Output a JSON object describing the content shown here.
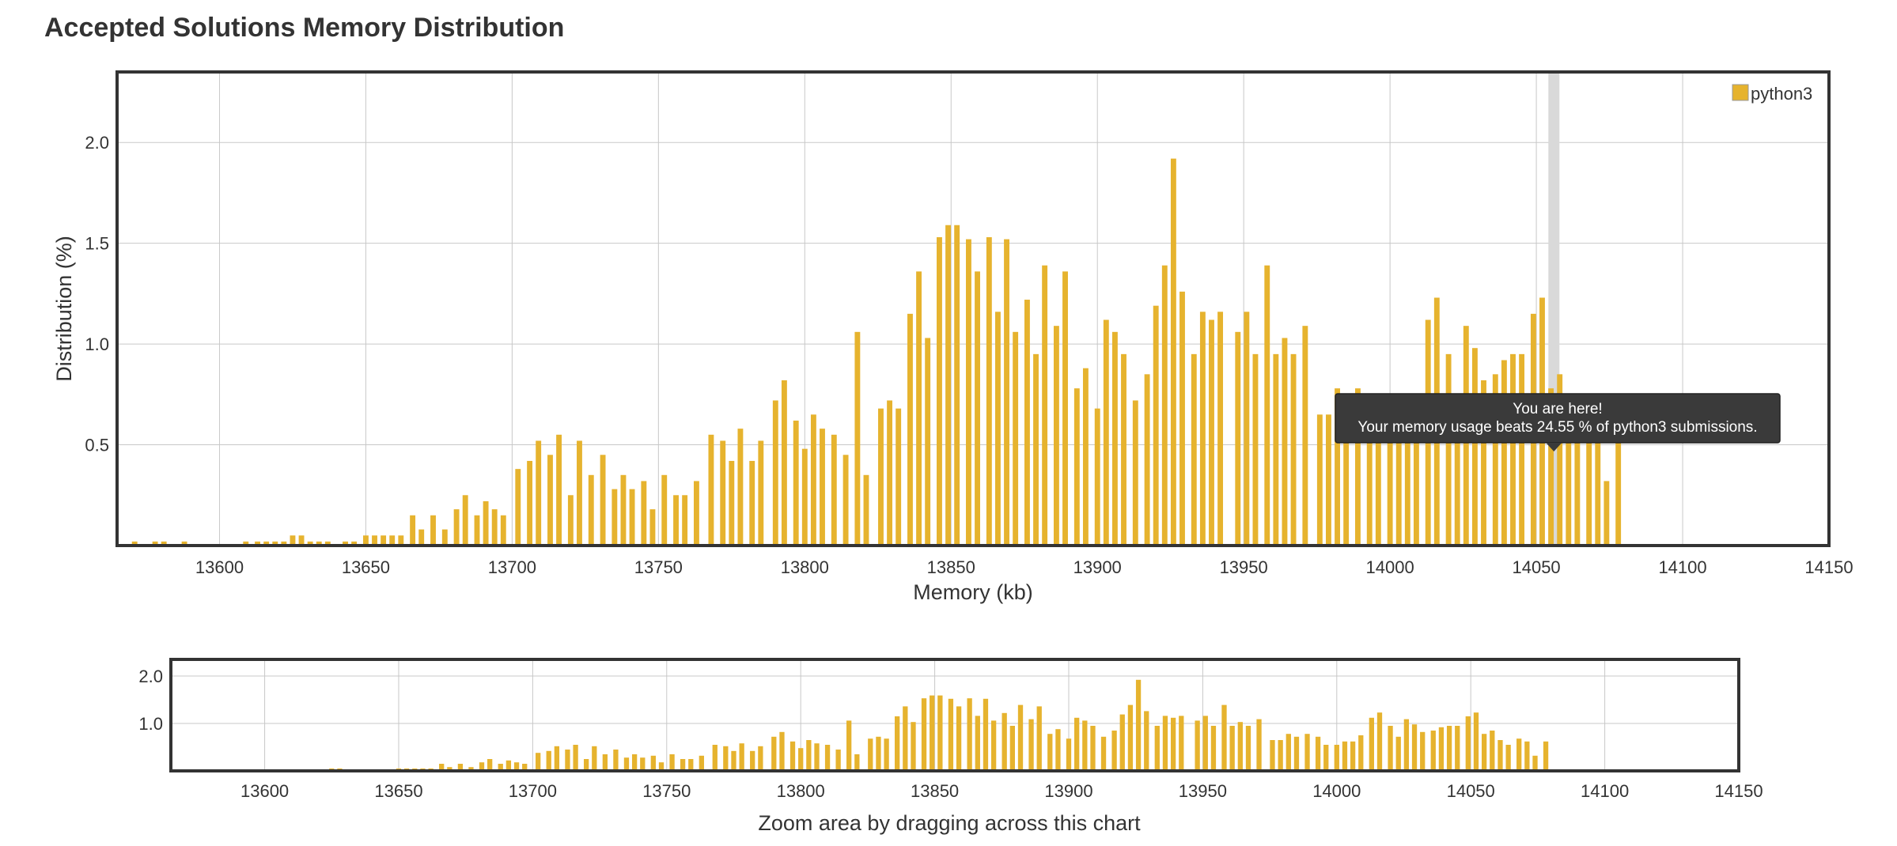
{
  "page": {
    "title": "Accepted Solutions Memory Distribution"
  },
  "colors": {
    "bar": "#e6b32e",
    "frame": "#333333",
    "grid": "#c8c8c8",
    "highlight": "#d9d9d9",
    "tooltip_bg": "#3a3a3a"
  },
  "chart_data": {
    "type": "bar",
    "series": [
      {
        "name": "python3"
      }
    ],
    "xlabel": "Memory (kb)",
    "ylabel": "Distribution (%)",
    "xlim": [
      13565,
      14150
    ],
    "ylim": [
      0,
      2.35
    ],
    "x_ticks": [
      13600,
      13650,
      13700,
      13750,
      13800,
      13850,
      13900,
      13950,
      14000,
      14050,
      14100,
      14150
    ],
    "y_ticks": [
      0.5,
      1.0,
      1.5,
      2.0
    ],
    "grid": true,
    "legend_position": "top-right",
    "bar_width_kb": 2,
    "bins": [
      [
        13571,
        0.02
      ],
      [
        13578,
        0.02
      ],
      [
        13581,
        0.02
      ],
      [
        13588,
        0.02
      ],
      [
        13609,
        0.02
      ],
      [
        13613,
        0.02
      ],
      [
        13616,
        0.02
      ],
      [
        13619,
        0.02
      ],
      [
        13622,
        0.02
      ],
      [
        13625,
        0.05
      ],
      [
        13628,
        0.05
      ],
      [
        13631,
        0.02
      ],
      [
        13634,
        0.02
      ],
      [
        13637,
        0.02
      ],
      [
        13643,
        0.02
      ],
      [
        13646,
        0.02
      ],
      [
        13650,
        0.05
      ],
      [
        13653,
        0.05
      ],
      [
        13656,
        0.05
      ],
      [
        13659,
        0.05
      ],
      [
        13662,
        0.05
      ],
      [
        13666,
        0.15
      ],
      [
        13669,
        0.08
      ],
      [
        13673,
        0.15
      ],
      [
        13677,
        0.08
      ],
      [
        13681,
        0.18
      ],
      [
        13684,
        0.25
      ],
      [
        13688,
        0.15
      ],
      [
        13691,
        0.22
      ],
      [
        13694,
        0.18
      ],
      [
        13697,
        0.15
      ],
      [
        13702,
        0.38
      ],
      [
        13706,
        0.42
      ],
      [
        13709,
        0.52
      ],
      [
        13713,
        0.45
      ],
      [
        13716,
        0.55
      ],
      [
        13720,
        0.25
      ],
      [
        13723,
        0.52
      ],
      [
        13727,
        0.35
      ],
      [
        13731,
        0.45
      ],
      [
        13735,
        0.28
      ],
      [
        13738,
        0.35
      ],
      [
        13741,
        0.28
      ],
      [
        13745,
        0.32
      ],
      [
        13748,
        0.18
      ],
      [
        13752,
        0.35
      ],
      [
        13756,
        0.25
      ],
      [
        13759,
        0.25
      ],
      [
        13763,
        0.32
      ],
      [
        13768,
        0.55
      ],
      [
        13772,
        0.52
      ],
      [
        13775,
        0.42
      ],
      [
        13778,
        0.58
      ],
      [
        13782,
        0.42
      ],
      [
        13785,
        0.52
      ],
      [
        13790,
        0.72
      ],
      [
        13793,
        0.82
      ],
      [
        13797,
        0.62
      ],
      [
        13800,
        0.48
      ],
      [
        13803,
        0.65
      ],
      [
        13806,
        0.58
      ],
      [
        13810,
        0.55
      ],
      [
        13814,
        0.45
      ],
      [
        13818,
        1.06
      ],
      [
        13821,
        0.35
      ],
      [
        13826,
        0.68
      ],
      [
        13829,
        0.72
      ],
      [
        13832,
        0.68
      ],
      [
        13836,
        1.15
      ],
      [
        13839,
        1.36
      ],
      [
        13842,
        1.03
      ],
      [
        13846,
        1.53
      ],
      [
        13849,
        1.59
      ],
      [
        13852,
        1.59
      ],
      [
        13856,
        1.52
      ],
      [
        13859,
        1.36
      ],
      [
        13863,
        1.53
      ],
      [
        13866,
        1.16
      ],
      [
        13869,
        1.52
      ],
      [
        13872,
        1.06
      ],
      [
        13876,
        1.22
      ],
      [
        13879,
        0.95
      ],
      [
        13882,
        1.39
      ],
      [
        13886,
        1.09
      ],
      [
        13889,
        1.36
      ],
      [
        13893,
        0.78
      ],
      [
        13896,
        0.88
      ],
      [
        13900,
        0.68
      ],
      [
        13903,
        1.12
      ],
      [
        13906,
        1.06
      ],
      [
        13909,
        0.95
      ],
      [
        13913,
        0.72
      ],
      [
        13917,
        0.85
      ],
      [
        13920,
        1.19
      ],
      [
        13923,
        1.39
      ],
      [
        13926,
        1.92
      ],
      [
        13929,
        1.26
      ],
      [
        13933,
        0.95
      ],
      [
        13936,
        1.16
      ],
      [
        13939,
        1.12
      ],
      [
        13942,
        1.16
      ],
      [
        13948,
        1.06
      ],
      [
        13951,
        1.16
      ],
      [
        13954,
        0.95
      ],
      [
        13958,
        1.39
      ],
      [
        13961,
        0.95
      ],
      [
        13964,
        1.03
      ],
      [
        13967,
        0.95
      ],
      [
        13971,
        1.09
      ],
      [
        13976,
        0.65
      ],
      [
        13979,
        0.65
      ],
      [
        13982,
        0.78
      ],
      [
        13985,
        0.72
      ],
      [
        13989,
        0.78
      ],
      [
        13993,
        0.72
      ],
      [
        13996,
        0.55
      ],
      [
        14000,
        0.55
      ],
      [
        14003,
        0.62
      ],
      [
        14006,
        0.62
      ],
      [
        14009,
        0.75
      ],
      [
        14013,
        1.12
      ],
      [
        14016,
        1.23
      ],
      [
        14020,
        0.95
      ],
      [
        14023,
        0.72
      ],
      [
        14026,
        1.09
      ],
      [
        14029,
        0.98
      ],
      [
        14032,
        0.82
      ],
      [
        14036,
        0.85
      ],
      [
        14039,
        0.92
      ],
      [
        14042,
        0.95
      ],
      [
        14045,
        0.95
      ],
      [
        14049,
        1.15
      ],
      [
        14052,
        1.23
      ],
      [
        14055,
        0.78
      ],
      [
        14058,
        0.85
      ],
      [
        14061,
        0.65
      ],
      [
        14064,
        0.55
      ],
      [
        14068,
        0.68
      ],
      [
        14071,
        0.62
      ],
      [
        14074,
        0.32
      ],
      [
        14078,
        0.62
      ]
    ],
    "annotation": {
      "x": 14056,
      "title": "You are here!",
      "text": "Your memory usage beats 24.55 % of python3 submissions."
    }
  },
  "navigator": {
    "caption": "Zoom area by dragging across this chart",
    "y_ticks": [
      1.0,
      2.0
    ],
    "x_ticks": [
      13600,
      13650,
      13700,
      13750,
      13800,
      13850,
      13900,
      13950,
      14000,
      14050,
      14100,
      14150
    ]
  }
}
